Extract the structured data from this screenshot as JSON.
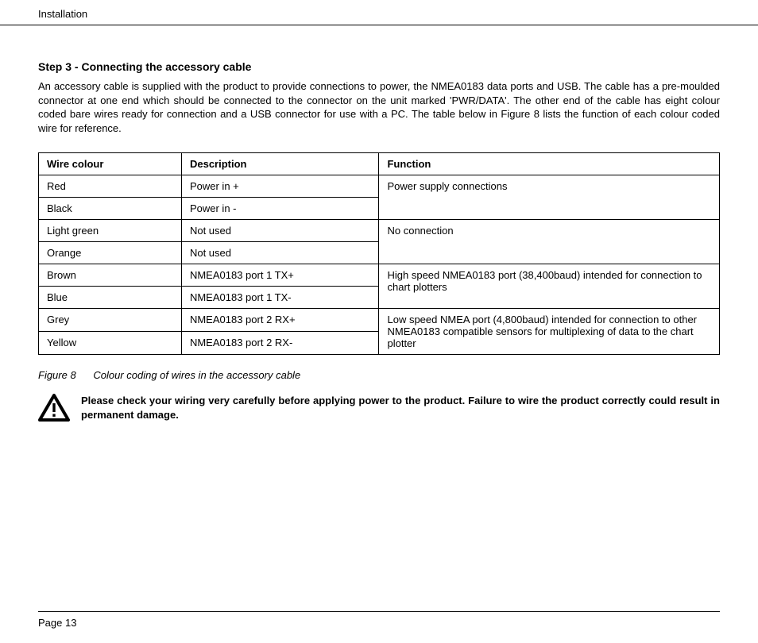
{
  "header": {
    "section": "Installation"
  },
  "step": {
    "title": "Step 3 - Connecting the accessory cable",
    "body": "An accessory cable is supplied with the product to provide connections to power, the NMEA0183 data ports and USB. The cable has a pre-moulded connector at one end which should be connected to the connector on the unit marked 'PWR/DATA'. The other end of the cable has eight colour coded bare wires ready for connection and a USB connector for use with a PC. The table below in Figure 8 lists the function of each colour coded wire for reference."
  },
  "table": {
    "columns": [
      "Wire colour",
      "Description",
      "Function"
    ],
    "col_widths": [
      "21%",
      "29%",
      "50%"
    ],
    "rows": [
      {
        "wire": "Red",
        "desc": "Power in +",
        "func": "Power supply connections",
        "func_rowspan": 2
      },
      {
        "wire": "Black",
        "desc": "Power in -"
      },
      {
        "wire": "Light green",
        "desc": "Not used",
        "func": "No connection",
        "func_rowspan": 2
      },
      {
        "wire": "Orange",
        "desc": "Not used"
      },
      {
        "wire": "Brown",
        "desc": "NMEA0183 port 1 TX+",
        "func": "High speed NMEA0183 port (38,400baud) intended for connection to chart plotters",
        "func_rowspan": 2
      },
      {
        "wire": "Blue",
        "desc": "NMEA0183 port 1 TX-"
      },
      {
        "wire": "Grey",
        "desc": "NMEA0183 port 2 RX+",
        "func": "Low speed NMEA port (4,800baud) intended for connection to other NMEA0183 compatible sensors for multiplexing of data to the chart plotter",
        "func_rowspan": 2
      },
      {
        "wire": "Yellow",
        "desc": "NMEA0183 port 2 RX-"
      }
    ],
    "border_color": "#000000",
    "font_size": 13
  },
  "figure": {
    "label": "Figure 8",
    "caption": "Colour coding of wires in the accessory cable"
  },
  "warning": {
    "text": "Please check your wiring very carefully before applying power to the product. Failure to wire the product correctly could result in permanent damage.",
    "icon_stroke": "#000000",
    "icon_fill": "#ffffff"
  },
  "footer": {
    "page": "Page 13"
  },
  "background_color": "#ffffff",
  "text_color": "#000000"
}
